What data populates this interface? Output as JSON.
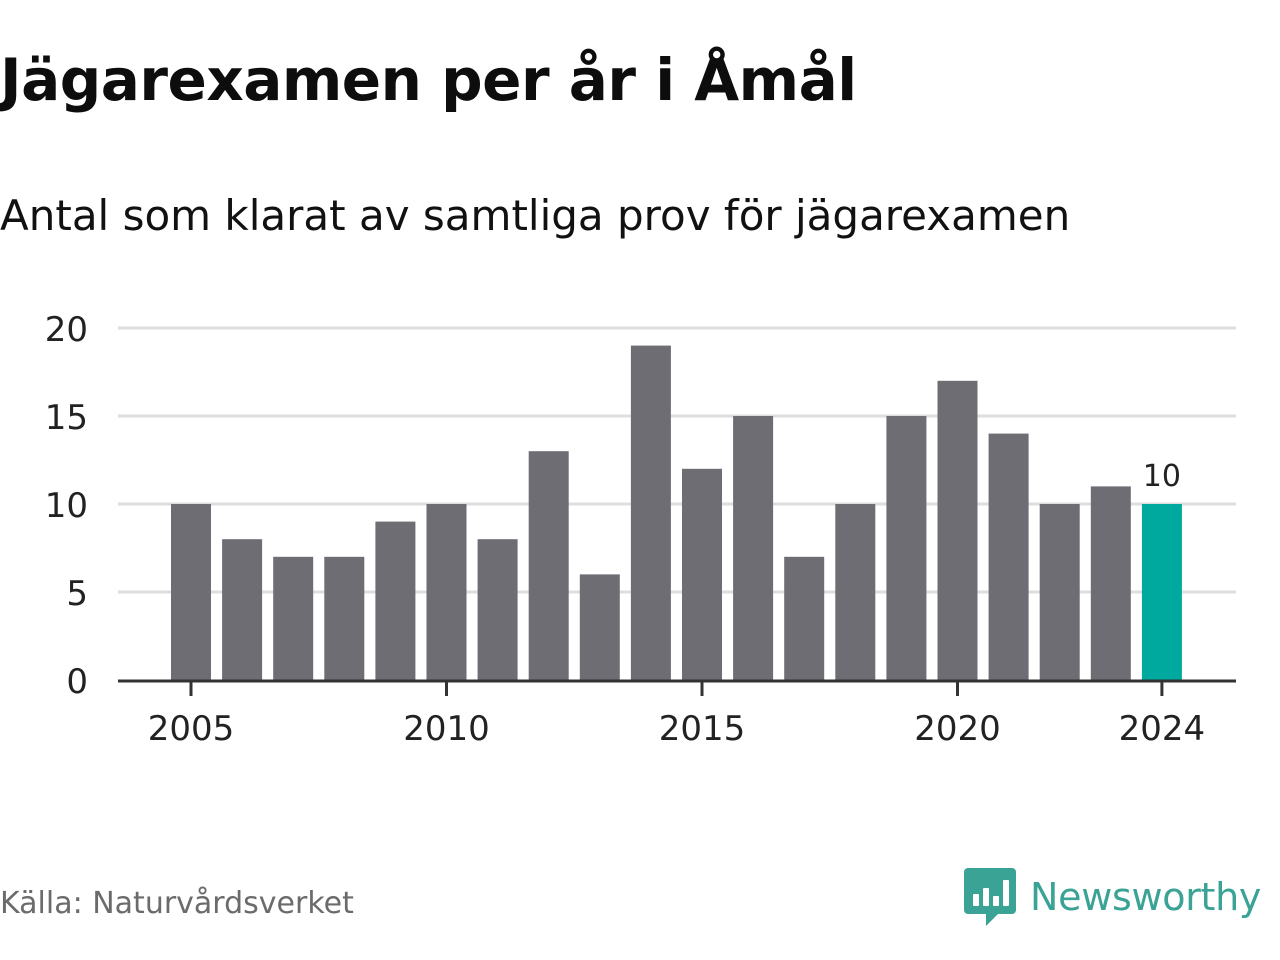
{
  "title": "Jägarexamen per år i Åmål",
  "subtitle": "Antal som klarat av samtliga prov för jägarexamen",
  "source": "Källa: Naturvårdsverket",
  "brand": {
    "name": "Newsworthy",
    "icon": "newsworthy-logo-icon",
    "color": "#3aa395"
  },
  "chart_data": {
    "type": "bar",
    "title": "Jägarexamen per år i Åmål",
    "subtitle": "Antal som klarat av samtliga prov för jägarexamen",
    "xlabel": "",
    "ylabel": "",
    "categories": [
      2005,
      2006,
      2007,
      2008,
      2009,
      2010,
      2011,
      2012,
      2013,
      2014,
      2015,
      2016,
      2017,
      2018,
      2019,
      2020,
      2021,
      2022,
      2023,
      2024
    ],
    "values": [
      10,
      8,
      7,
      7,
      9,
      10,
      8,
      13,
      6,
      19,
      12,
      15,
      7,
      10,
      15,
      17,
      14,
      10,
      11,
      10
    ],
    "ylim": [
      0,
      20
    ],
    "yticks": [
      0,
      5,
      10,
      15,
      20
    ],
    "xticks": [
      2005,
      2010,
      2015,
      2020,
      2024
    ],
    "highlight": {
      "category": 2024,
      "label": "10",
      "color": "#00a99d"
    },
    "bar_color": "#6e6d74",
    "grid": true,
    "legend": "none"
  }
}
